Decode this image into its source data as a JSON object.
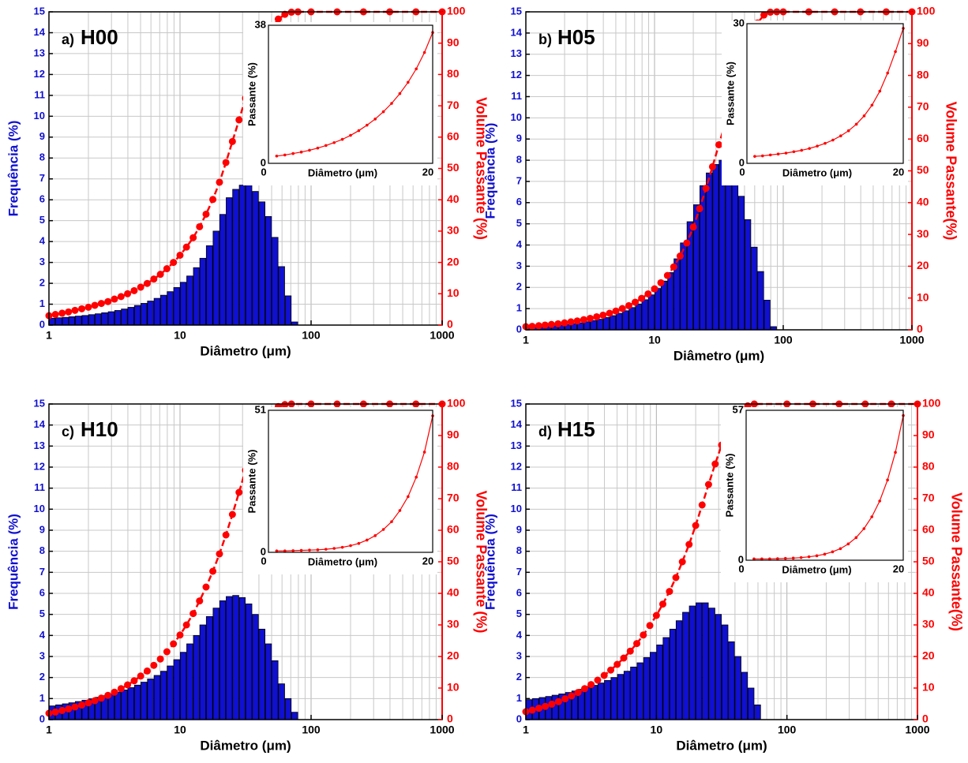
{
  "chart_data": [
    {
      "type": "histogram",
      "label": "a)",
      "title": "H00",
      "xlabel": "Diâmetro (μm)",
      "ylabel": "Frequência (%)",
      "y2label": "Volume Passante (%)",
      "log_x": true,
      "grid": true,
      "xlim": [
        1,
        1000
      ],
      "xticks": [
        1,
        10,
        100,
        1000
      ],
      "ylim": [
        0,
        15
      ],
      "yticks": [
        0,
        1,
        2,
        3,
        4,
        5,
        6,
        7,
        8,
        9,
        10,
        11,
        12,
        13,
        14,
        15
      ],
      "y2lim": [
        0,
        100
      ],
      "y2ticks": [
        0,
        10,
        20,
        30,
        40,
        50,
        60,
        70,
        80,
        90,
        100
      ],
      "bins": [
        1,
        1.12,
        1.26,
        1.41,
        1.58,
        1.78,
        2,
        2.24,
        2.51,
        2.82,
        3.16,
        3.55,
        3.98,
        4.47,
        5.01,
        5.62,
        6.31,
        7.08,
        7.94,
        8.91,
        10,
        11.2,
        12.6,
        14.1,
        15.8,
        17.8,
        20,
        22.4,
        25.1,
        28.2,
        31.6,
        35.5,
        39.8,
        44.7,
        50.1,
        56.2,
        63.1,
        70.8,
        79.4
      ],
      "values": [
        0.33,
        0.35,
        0.37,
        0.4,
        0.43,
        0.46,
        0.5,
        0.54,
        0.59,
        0.64,
        0.7,
        0.77,
        0.85,
        0.94,
        1.04,
        1.15,
        1.28,
        1.43,
        1.6,
        1.8,
        2.05,
        2.35,
        2.75,
        3.2,
        3.8,
        4.5,
        5.3,
        6.1,
        6.5,
        6.7,
        6.7,
        6.4,
        5.9,
        5.2,
        4.2,
        2.8,
        1.4,
        0.15
      ],
      "color": "#1010d0",
      "cumulative": {
        "axis": "y2",
        "color": "#ff0000",
        "x": [
          1,
          1.12,
          1.26,
          1.41,
          1.58,
          1.78,
          2,
          2.24,
          2.51,
          2.82,
          3.16,
          3.55,
          3.98,
          4.47,
          5.01,
          5.62,
          6.31,
          7.08,
          7.94,
          8.91,
          10,
          11.2,
          12.6,
          14.1,
          15.8,
          17.8,
          20,
          22.4,
          25.1,
          28.2,
          31.6,
          35.5,
          39.8,
          44.7,
          50.1,
          56.2,
          63.1,
          70.8,
          79.4,
          100,
          158,
          251,
          398,
          631,
          1000
        ],
        "values": [
          3.0,
          3.4,
          3.8,
          4.2,
          4.7,
          5.2,
          5.7,
          6.3,
          6.9,
          7.5,
          8.3,
          9.1,
          10.0,
          11.0,
          12.1,
          13.3,
          14.7,
          16.2,
          18.0,
          20.0,
          22.3,
          24.9,
          27.9,
          31.4,
          35.4,
          40.1,
          45.6,
          51.9,
          58.6,
          65.5,
          72.4,
          79.0,
          85.1,
          90.5,
          94.8,
          97.7,
          99.2,
          99.9,
          100,
          100,
          100,
          100,
          100,
          100,
          100
        ]
      },
      "inset": {
        "type": "line",
        "xlabel": "Diâmetro (μm)",
        "ylabel": "Passante (%)",
        "color": "#ff0000",
        "xlim": [
          0,
          20
        ],
        "xticks": [
          0,
          20
        ],
        "ylim": [
          0,
          38
        ],
        "yticks": [
          0,
          38
        ],
        "x": [
          1,
          2,
          3,
          4,
          5,
          6,
          7,
          8,
          9,
          10,
          11,
          12,
          13,
          14,
          15,
          16,
          17,
          18,
          19,
          20
        ],
        "values": [
          2.0,
          2.3,
          2.7,
          3.1,
          3.6,
          4.2,
          4.9,
          5.7,
          6.6,
          7.7,
          9.0,
          10.5,
          12.2,
          14.2,
          16.5,
          19.2,
          22.3,
          26,
          30.5,
          36
        ]
      }
    },
    {
      "type": "histogram",
      "label": "b)",
      "title": "H05",
      "xlabel": "Diâmetro (μm)",
      "ylabel": "Frequência (%)",
      "y2label": "Volume Passante(%)",
      "log_x": true,
      "grid": true,
      "xlim": [
        1,
        1000
      ],
      "xticks": [
        1,
        10,
        100,
        1000
      ],
      "ylim": [
        0,
        15
      ],
      "yticks": [
        0,
        1,
        2,
        3,
        4,
        5,
        6,
        7,
        8,
        9,
        10,
        11,
        12,
        13,
        14,
        15
      ],
      "y2lim": [
        0,
        100
      ],
      "y2ticks": [
        0,
        10,
        20,
        30,
        40,
        50,
        60,
        70,
        80,
        90,
        100
      ],
      "bins": [
        1,
        1.12,
        1.26,
        1.41,
        1.58,
        1.78,
        2,
        2.24,
        2.51,
        2.82,
        3.16,
        3.55,
        3.98,
        4.47,
        5.01,
        5.62,
        6.31,
        7.08,
        7.94,
        8.91,
        10,
        11.2,
        12.6,
        14.1,
        15.8,
        17.8,
        20,
        22.4,
        25.1,
        28.2,
        31.6,
        35.5,
        39.8,
        44.7,
        50.1,
        56.2,
        63.1,
        70.8,
        79.4,
        89.1
      ],
      "values": [
        0.1,
        0.12,
        0.14,
        0.16,
        0.19,
        0.22,
        0.25,
        0.29,
        0.33,
        0.38,
        0.44,
        0.5,
        0.58,
        0.67,
        0.78,
        0.9,
        1.05,
        1.22,
        1.42,
        1.65,
        1.95,
        2.3,
        2.7,
        3.35,
        4.1,
        5.1,
        5.9,
        6.8,
        7.4,
        7.8,
        8.0,
        7.8,
        7.2,
        6.3,
        5.2,
        3.9,
        2.75,
        1.4,
        0.15
      ],
      "color": "#1010d0",
      "cumulative": {
        "axis": "y2",
        "color": "#ff0000",
        "x": [
          1,
          1.12,
          1.26,
          1.41,
          1.58,
          1.78,
          2,
          2.24,
          2.51,
          2.82,
          3.16,
          3.55,
          3.98,
          4.47,
          5.01,
          5.62,
          6.31,
          7.08,
          7.94,
          8.91,
          10,
          11.2,
          12.6,
          14.1,
          15.8,
          17.8,
          20,
          22.4,
          25.1,
          28.2,
          31.6,
          35.5,
          39.8,
          44.7,
          50.1,
          56.2,
          63.1,
          70.8,
          79.4,
          89.1,
          100,
          158,
          251,
          398,
          631,
          1000
        ],
        "values": [
          1.0,
          1.1,
          1.3,
          1.5,
          1.7,
          1.9,
          2.2,
          2.5,
          2.8,
          3.2,
          3.6,
          4.1,
          4.6,
          5.2,
          5.9,
          6.7,
          7.6,
          8.7,
          9.9,
          11.3,
          12.9,
          14.8,
          17.1,
          19.8,
          23.2,
          27.3,
          32.3,
          38.1,
          44.5,
          51.3,
          58.2,
          65.0,
          72,
          80,
          87,
          92.5,
          96.5,
          99,
          99.9,
          100,
          100,
          100,
          100,
          100,
          100,
          100
        ]
      },
      "inset": {
        "type": "line",
        "xlabel": "Diâmetro (μm)",
        "ylabel": "Passante (%)",
        "color": "#ff0000",
        "xlim": [
          0,
          20
        ],
        "xticks": [
          0,
          20
        ],
        "ylim": [
          0,
          30
        ],
        "yticks": [
          0,
          30
        ],
        "x": [
          1,
          2,
          3,
          4,
          5,
          6,
          7,
          8,
          9,
          10,
          11,
          12,
          13,
          14,
          15,
          16,
          17,
          18,
          19,
          20
        ],
        "values": [
          1.5,
          1.6,
          1.8,
          2.0,
          2.2,
          2.5,
          2.8,
          3.2,
          3.7,
          4.3,
          5.0,
          5.9,
          7.0,
          8.4,
          10.2,
          12.5,
          15.5,
          19.4,
          24,
          29
        ]
      }
    },
    {
      "type": "histogram",
      "label": "c)",
      "title": "H10",
      "xlabel": "Diâmetro (μm)",
      "ylabel": "Frequência (%)",
      "y2label": "Volume Passante (%)",
      "log_x": true,
      "grid": true,
      "xlim": [
        1,
        1000
      ],
      "xticks": [
        1,
        10,
        100,
        1000
      ],
      "ylim": [
        0,
        15
      ],
      "yticks": [
        0,
        1,
        2,
        3,
        4,
        5,
        6,
        7,
        8,
        9,
        10,
        11,
        12,
        13,
        14,
        15
      ],
      "y2lim": [
        0,
        100
      ],
      "y2ticks": [
        0,
        10,
        20,
        30,
        40,
        50,
        60,
        70,
        80,
        90,
        100
      ],
      "bins": [
        1,
        1.12,
        1.26,
        1.41,
        1.58,
        1.78,
        2,
        2.24,
        2.51,
        2.82,
        3.16,
        3.55,
        3.98,
        4.47,
        5.01,
        5.62,
        6.31,
        7.08,
        7.94,
        8.91,
        10,
        11.2,
        12.6,
        14.1,
        15.8,
        17.8,
        20,
        22.4,
        25.1,
        28.2,
        31.6,
        35.5,
        39.8,
        44.7,
        50.1,
        56.2,
        63.1,
        70.8,
        79.4
      ],
      "values": [
        0.65,
        0.7,
        0.75,
        0.8,
        0.86,
        0.92,
        0.99,
        1.06,
        1.14,
        1.22,
        1.31,
        1.41,
        1.52,
        1.64,
        1.78,
        1.93,
        2.1,
        2.3,
        2.55,
        2.85,
        3.2,
        3.6,
        4.0,
        4.5,
        4.9,
        5.3,
        5.65,
        5.85,
        5.9,
        5.8,
        5.5,
        5.0,
        4.3,
        3.6,
        2.8,
        1.7,
        1.0,
        0.35
      ],
      "color": "#1010d0",
      "cumulative": {
        "axis": "y2",
        "color": "#ff0000",
        "x": [
          1,
          1.12,
          1.26,
          1.41,
          1.58,
          1.78,
          2,
          2.24,
          2.51,
          2.82,
          3.16,
          3.55,
          3.98,
          4.47,
          5.01,
          5.62,
          6.31,
          7.08,
          7.94,
          8.91,
          10,
          11.2,
          12.6,
          14.1,
          15.8,
          17.8,
          20,
          22.4,
          25.1,
          28.2,
          31.6,
          35.5,
          39.8,
          44.7,
          50.1,
          56.2,
          63.1,
          70.8,
          100,
          158,
          251,
          398,
          631,
          1000
        ],
        "values": [
          2,
          2.4,
          2.9,
          3.4,
          4.0,
          4.6,
          5.3,
          6.0,
          6.8,
          7.7,
          8.7,
          9.8,
          11.0,
          12.3,
          13.8,
          15.4,
          17.2,
          19.2,
          21.5,
          24.0,
          26.8,
          30,
          33.6,
          37.6,
          42.0,
          47.0,
          52.5,
          58.5,
          65,
          72,
          79,
          85.5,
          91,
          95,
          97.7,
          99.2,
          99.8,
          100,
          100,
          100,
          100,
          100,
          100,
          100
        ]
      },
      "inset": {
        "type": "line",
        "xlabel": "Diâmetro (μm)",
        "ylabel": "Passante (%)",
        "color": "#ff0000",
        "xlim": [
          0,
          20
        ],
        "xticks": [
          0,
          20
        ],
        "ylim": [
          0,
          51
        ],
        "yticks": [
          0,
          51
        ],
        "x": [
          1,
          2,
          3,
          4,
          5,
          6,
          7,
          8,
          9,
          10,
          11,
          12,
          13,
          14,
          15,
          16,
          17,
          18,
          19,
          20
        ],
        "values": [
          0.5,
          0.5,
          0.6,
          0.7,
          0.8,
          0.9,
          1.1,
          1.4,
          1.8,
          2.4,
          3.2,
          4.4,
          6.0,
          8.2,
          11.0,
          15.0,
          20.0,
          27,
          36,
          49
        ]
      }
    },
    {
      "type": "histogram",
      "label": "d)",
      "title": "H15",
      "xlabel": "Diâmetro (μm)",
      "ylabel": "Frequência (%)",
      "y2label": "Volume Passante(%)",
      "log_x": true,
      "grid": true,
      "xlim": [
        1,
        1000
      ],
      "xticks": [
        1,
        10,
        100,
        1000
      ],
      "ylim": [
        0,
        15
      ],
      "yticks": [
        0,
        1,
        2,
        3,
        4,
        5,
        6,
        7,
        8,
        9,
        10,
        11,
        12,
        13,
        14,
        15
      ],
      "y2lim": [
        0,
        100
      ],
      "y2ticks": [
        0,
        10,
        20,
        30,
        40,
        50,
        60,
        70,
        80,
        90,
        100
      ],
      "bins": [
        1,
        1.12,
        1.26,
        1.41,
        1.58,
        1.78,
        2,
        2.24,
        2.51,
        2.82,
        3.16,
        3.55,
        3.98,
        4.47,
        5.01,
        5.62,
        6.31,
        7.08,
        7.94,
        8.91,
        10,
        11.2,
        12.6,
        14.1,
        15.8,
        17.8,
        20,
        22.4,
        25.1,
        28.2,
        31.6,
        35.5,
        39.8,
        44.7,
        50.1,
        56.2,
        63.1
      ],
      "values": [
        0.95,
        1.0,
        1.05,
        1.1,
        1.16,
        1.22,
        1.29,
        1.36,
        1.44,
        1.53,
        1.63,
        1.74,
        1.86,
        2.0,
        2.15,
        2.3,
        2.5,
        2.7,
        2.95,
        3.2,
        3.55,
        3.9,
        4.3,
        4.7,
        5.1,
        5.4,
        5.55,
        5.55,
        5.3,
        5.0,
        4.5,
        3.7,
        3.0,
        2.25,
        1.5,
        0.7
      ],
      "color": "#1010d0",
      "cumulative": {
        "axis": "y2",
        "color": "#ff0000",
        "x": [
          1,
          1.12,
          1.26,
          1.41,
          1.58,
          1.78,
          2,
          2.24,
          2.51,
          2.82,
          3.16,
          3.55,
          3.98,
          4.47,
          5.01,
          5.62,
          6.31,
          7.08,
          7.94,
          8.91,
          10,
          11.2,
          12.6,
          14.1,
          15.8,
          17.8,
          20,
          22.4,
          25.1,
          28.2,
          31.6,
          35.5,
          39.8,
          44.7,
          50.1,
          56.2,
          100,
          158,
          251,
          398,
          631,
          1000
        ],
        "values": [
          2.5,
          3.0,
          3.6,
          4.2,
          4.9,
          5.7,
          6.6,
          7.5,
          8.6,
          9.8,
          11.1,
          12.5,
          14.0,
          15.7,
          17.5,
          19.5,
          21.7,
          24.1,
          26.8,
          29.8,
          33,
          36.6,
          40.6,
          45,
          50,
          55.5,
          61.5,
          68,
          74.5,
          81,
          87,
          92,
          95.8,
          98.2,
          99.4,
          100,
          100,
          100,
          100,
          100,
          100,
          100
        ]
      },
      "inset": {
        "type": "line",
        "xlabel": "Diâmetro (μm)",
        "ylabel": "Passante (%)",
        "color": "#ff0000",
        "xlim": [
          0,
          20
        ],
        "xticks": [
          0,
          20
        ],
        "ylim": [
          0,
          57
        ],
        "yticks": [
          0,
          57
        ],
        "x": [
          1,
          2,
          3,
          4,
          5,
          6,
          7,
          8,
          9,
          10,
          11,
          12,
          13,
          14,
          15,
          16,
          17,
          18,
          19,
          20
        ],
        "values": [
          0.5,
          0.5,
          0.5,
          0.6,
          0.7,
          0.8,
          1.0,
          1.3,
          1.7,
          2.3,
          3.2,
          4.4,
          6.2,
          8.6,
          12,
          16.5,
          22.5,
          30.5,
          41,
          55
        ]
      }
    }
  ]
}
